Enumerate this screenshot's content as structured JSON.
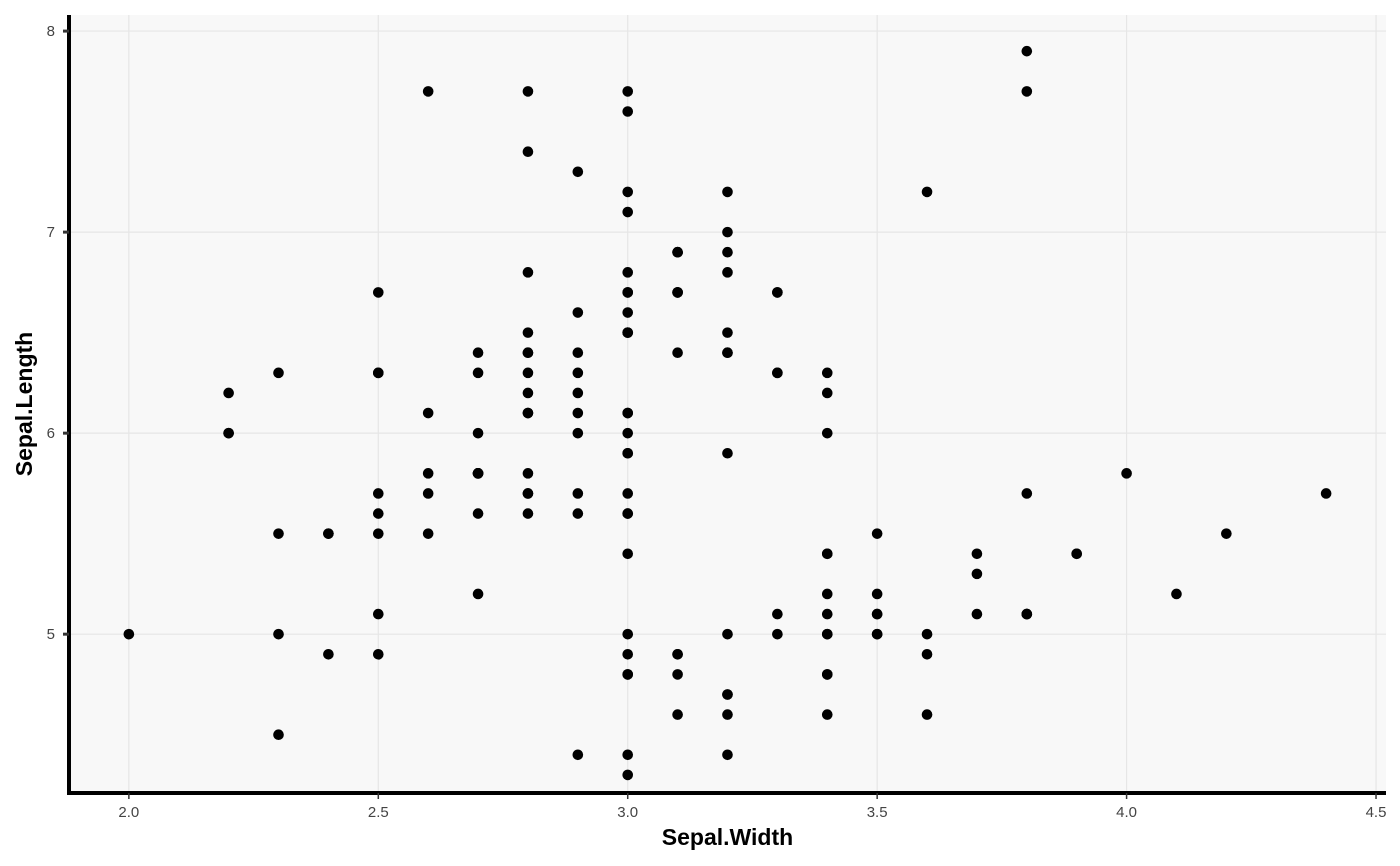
{
  "chart_data": {
    "type": "scatter",
    "title": "",
    "xlabel": "Sepal.Width",
    "ylabel": "Sepal.Length",
    "xlim": [
      1.88,
      4.52
    ],
    "ylim": [
      4.21,
      8.08
    ],
    "x_ticks": [
      "2.0",
      "2.5",
      "3.0",
      "3.5",
      "4.0",
      "4.5"
    ],
    "y_ticks": [
      "5",
      "6",
      "7",
      "8"
    ],
    "grid": true,
    "legend": "none",
    "colors": {
      "panel": "#f8f8f8",
      "grid": "#e6e6e6",
      "point": "#000000",
      "axis": "#000000"
    },
    "points": [
      [
        3.5,
        5.1
      ],
      [
        3.0,
        4.9
      ],
      [
        3.2,
        4.7
      ],
      [
        3.1,
        4.6
      ],
      [
        3.6,
        5.0
      ],
      [
        3.9,
        5.4
      ],
      [
        3.4,
        4.6
      ],
      [
        3.4,
        5.0
      ],
      [
        2.9,
        4.4
      ],
      [
        3.1,
        4.9
      ],
      [
        3.7,
        5.4
      ],
      [
        3.4,
        4.8
      ],
      [
        3.0,
        4.8
      ],
      [
        3.0,
        4.3
      ],
      [
        4.0,
        5.8
      ],
      [
        4.4,
        5.7
      ],
      [
        3.9,
        5.4
      ],
      [
        3.5,
        5.1
      ],
      [
        3.8,
        5.7
      ],
      [
        3.8,
        5.1
      ],
      [
        3.4,
        5.4
      ],
      [
        3.7,
        5.1
      ],
      [
        3.6,
        4.6
      ],
      [
        3.3,
        5.1
      ],
      [
        3.4,
        4.8
      ],
      [
        3.0,
        5.0
      ],
      [
        3.4,
        5.0
      ],
      [
        3.5,
        5.2
      ],
      [
        3.4,
        5.2
      ],
      [
        3.2,
        4.7
      ],
      [
        3.1,
        4.8
      ],
      [
        3.4,
        5.4
      ],
      [
        4.1,
        5.2
      ],
      [
        4.2,
        5.5
      ],
      [
        3.1,
        4.9
      ],
      [
        3.2,
        5.0
      ],
      [
        3.5,
        5.5
      ],
      [
        3.6,
        4.9
      ],
      [
        3.0,
        4.4
      ],
      [
        3.4,
        5.1
      ],
      [
        3.5,
        5.0
      ],
      [
        2.3,
        4.5
      ],
      [
        3.2,
        4.4
      ],
      [
        3.5,
        5.0
      ],
      [
        3.8,
        5.1
      ],
      [
        3.0,
        4.8
      ],
      [
        3.8,
        5.1
      ],
      [
        3.2,
        4.6
      ],
      [
        3.7,
        5.3
      ],
      [
        3.3,
        5.0
      ],
      [
        3.2,
        7.0
      ],
      [
        3.2,
        6.4
      ],
      [
        3.1,
        6.9
      ],
      [
        2.3,
        5.5
      ],
      [
        2.8,
        6.5
      ],
      [
        2.8,
        5.7
      ],
      [
        3.3,
        6.3
      ],
      [
        2.4,
        4.9
      ],
      [
        2.9,
        6.6
      ],
      [
        2.7,
        5.2
      ],
      [
        2.0,
        5.0
      ],
      [
        3.0,
        5.9
      ],
      [
        2.2,
        6.0
      ],
      [
        2.9,
        6.1
      ],
      [
        2.9,
        5.6
      ],
      [
        3.1,
        6.7
      ],
      [
        3.0,
        5.6
      ],
      [
        2.7,
        5.8
      ],
      [
        2.2,
        6.2
      ],
      [
        2.5,
        5.6
      ],
      [
        3.2,
        5.9
      ],
      [
        2.8,
        6.1
      ],
      [
        2.5,
        6.3
      ],
      [
        2.8,
        6.1
      ],
      [
        2.9,
        6.4
      ],
      [
        3.0,
        6.6
      ],
      [
        2.8,
        6.8
      ],
      [
        3.0,
        6.7
      ],
      [
        2.9,
        6.0
      ],
      [
        2.6,
        5.7
      ],
      [
        2.4,
        5.5
      ],
      [
        2.4,
        5.5
      ],
      [
        2.7,
        5.8
      ],
      [
        2.7,
        6.0
      ],
      [
        3.0,
        5.4
      ],
      [
        3.4,
        6.0
      ],
      [
        3.1,
        6.7
      ],
      [
        2.3,
        6.3
      ],
      [
        3.0,
        5.6
      ],
      [
        2.5,
        5.5
      ],
      [
        2.6,
        5.5
      ],
      [
        3.0,
        6.1
      ],
      [
        2.6,
        5.8
      ],
      [
        2.3,
        5.0
      ],
      [
        2.7,
        5.6
      ],
      [
        3.0,
        5.7
      ],
      [
        2.9,
        5.7
      ],
      [
        2.9,
        6.2
      ],
      [
        2.5,
        5.1
      ],
      [
        2.8,
        5.7
      ],
      [
        3.3,
        6.3
      ],
      [
        2.7,
        5.8
      ],
      [
        3.0,
        7.1
      ],
      [
        2.9,
        6.3
      ],
      [
        3.0,
        6.5
      ],
      [
        3.0,
        7.6
      ],
      [
        2.5,
        4.9
      ],
      [
        2.9,
        7.3
      ],
      [
        2.5,
        6.7
      ],
      [
        3.6,
        7.2
      ],
      [
        3.2,
        6.5
      ],
      [
        2.7,
        6.4
      ],
      [
        3.0,
        6.8
      ],
      [
        2.5,
        5.7
      ],
      [
        2.8,
        5.8
      ],
      [
        3.2,
        6.4
      ],
      [
        3.0,
        6.5
      ],
      [
        3.8,
        7.7
      ],
      [
        2.6,
        7.7
      ],
      [
        2.2,
        6.0
      ],
      [
        3.2,
        6.9
      ],
      [
        2.8,
        5.6
      ],
      [
        2.8,
        7.7
      ],
      [
        2.7,
        6.3
      ],
      [
        3.3,
        6.7
      ],
      [
        3.2,
        7.2
      ],
      [
        2.8,
        6.2
      ],
      [
        3.0,
        6.1
      ],
      [
        2.8,
        6.4
      ],
      [
        3.0,
        7.2
      ],
      [
        2.8,
        7.4
      ],
      [
        3.8,
        7.9
      ],
      [
        2.8,
        6.4
      ],
      [
        2.8,
        6.3
      ],
      [
        2.6,
        6.1
      ],
      [
        3.0,
        7.7
      ],
      [
        3.4,
        6.3
      ],
      [
        3.1,
        6.4
      ],
      [
        3.0,
        6.0
      ],
      [
        3.1,
        6.9
      ],
      [
        3.1,
        6.7
      ],
      [
        3.1,
        6.9
      ],
      [
        2.7,
        5.8
      ],
      [
        3.2,
        6.8
      ],
      [
        3.3,
        6.7
      ],
      [
        3.0,
        6.7
      ],
      [
        2.5,
        6.3
      ],
      [
        3.0,
        6.5
      ],
      [
        3.4,
        6.2
      ],
      [
        3.0,
        5.9
      ]
    ]
  }
}
